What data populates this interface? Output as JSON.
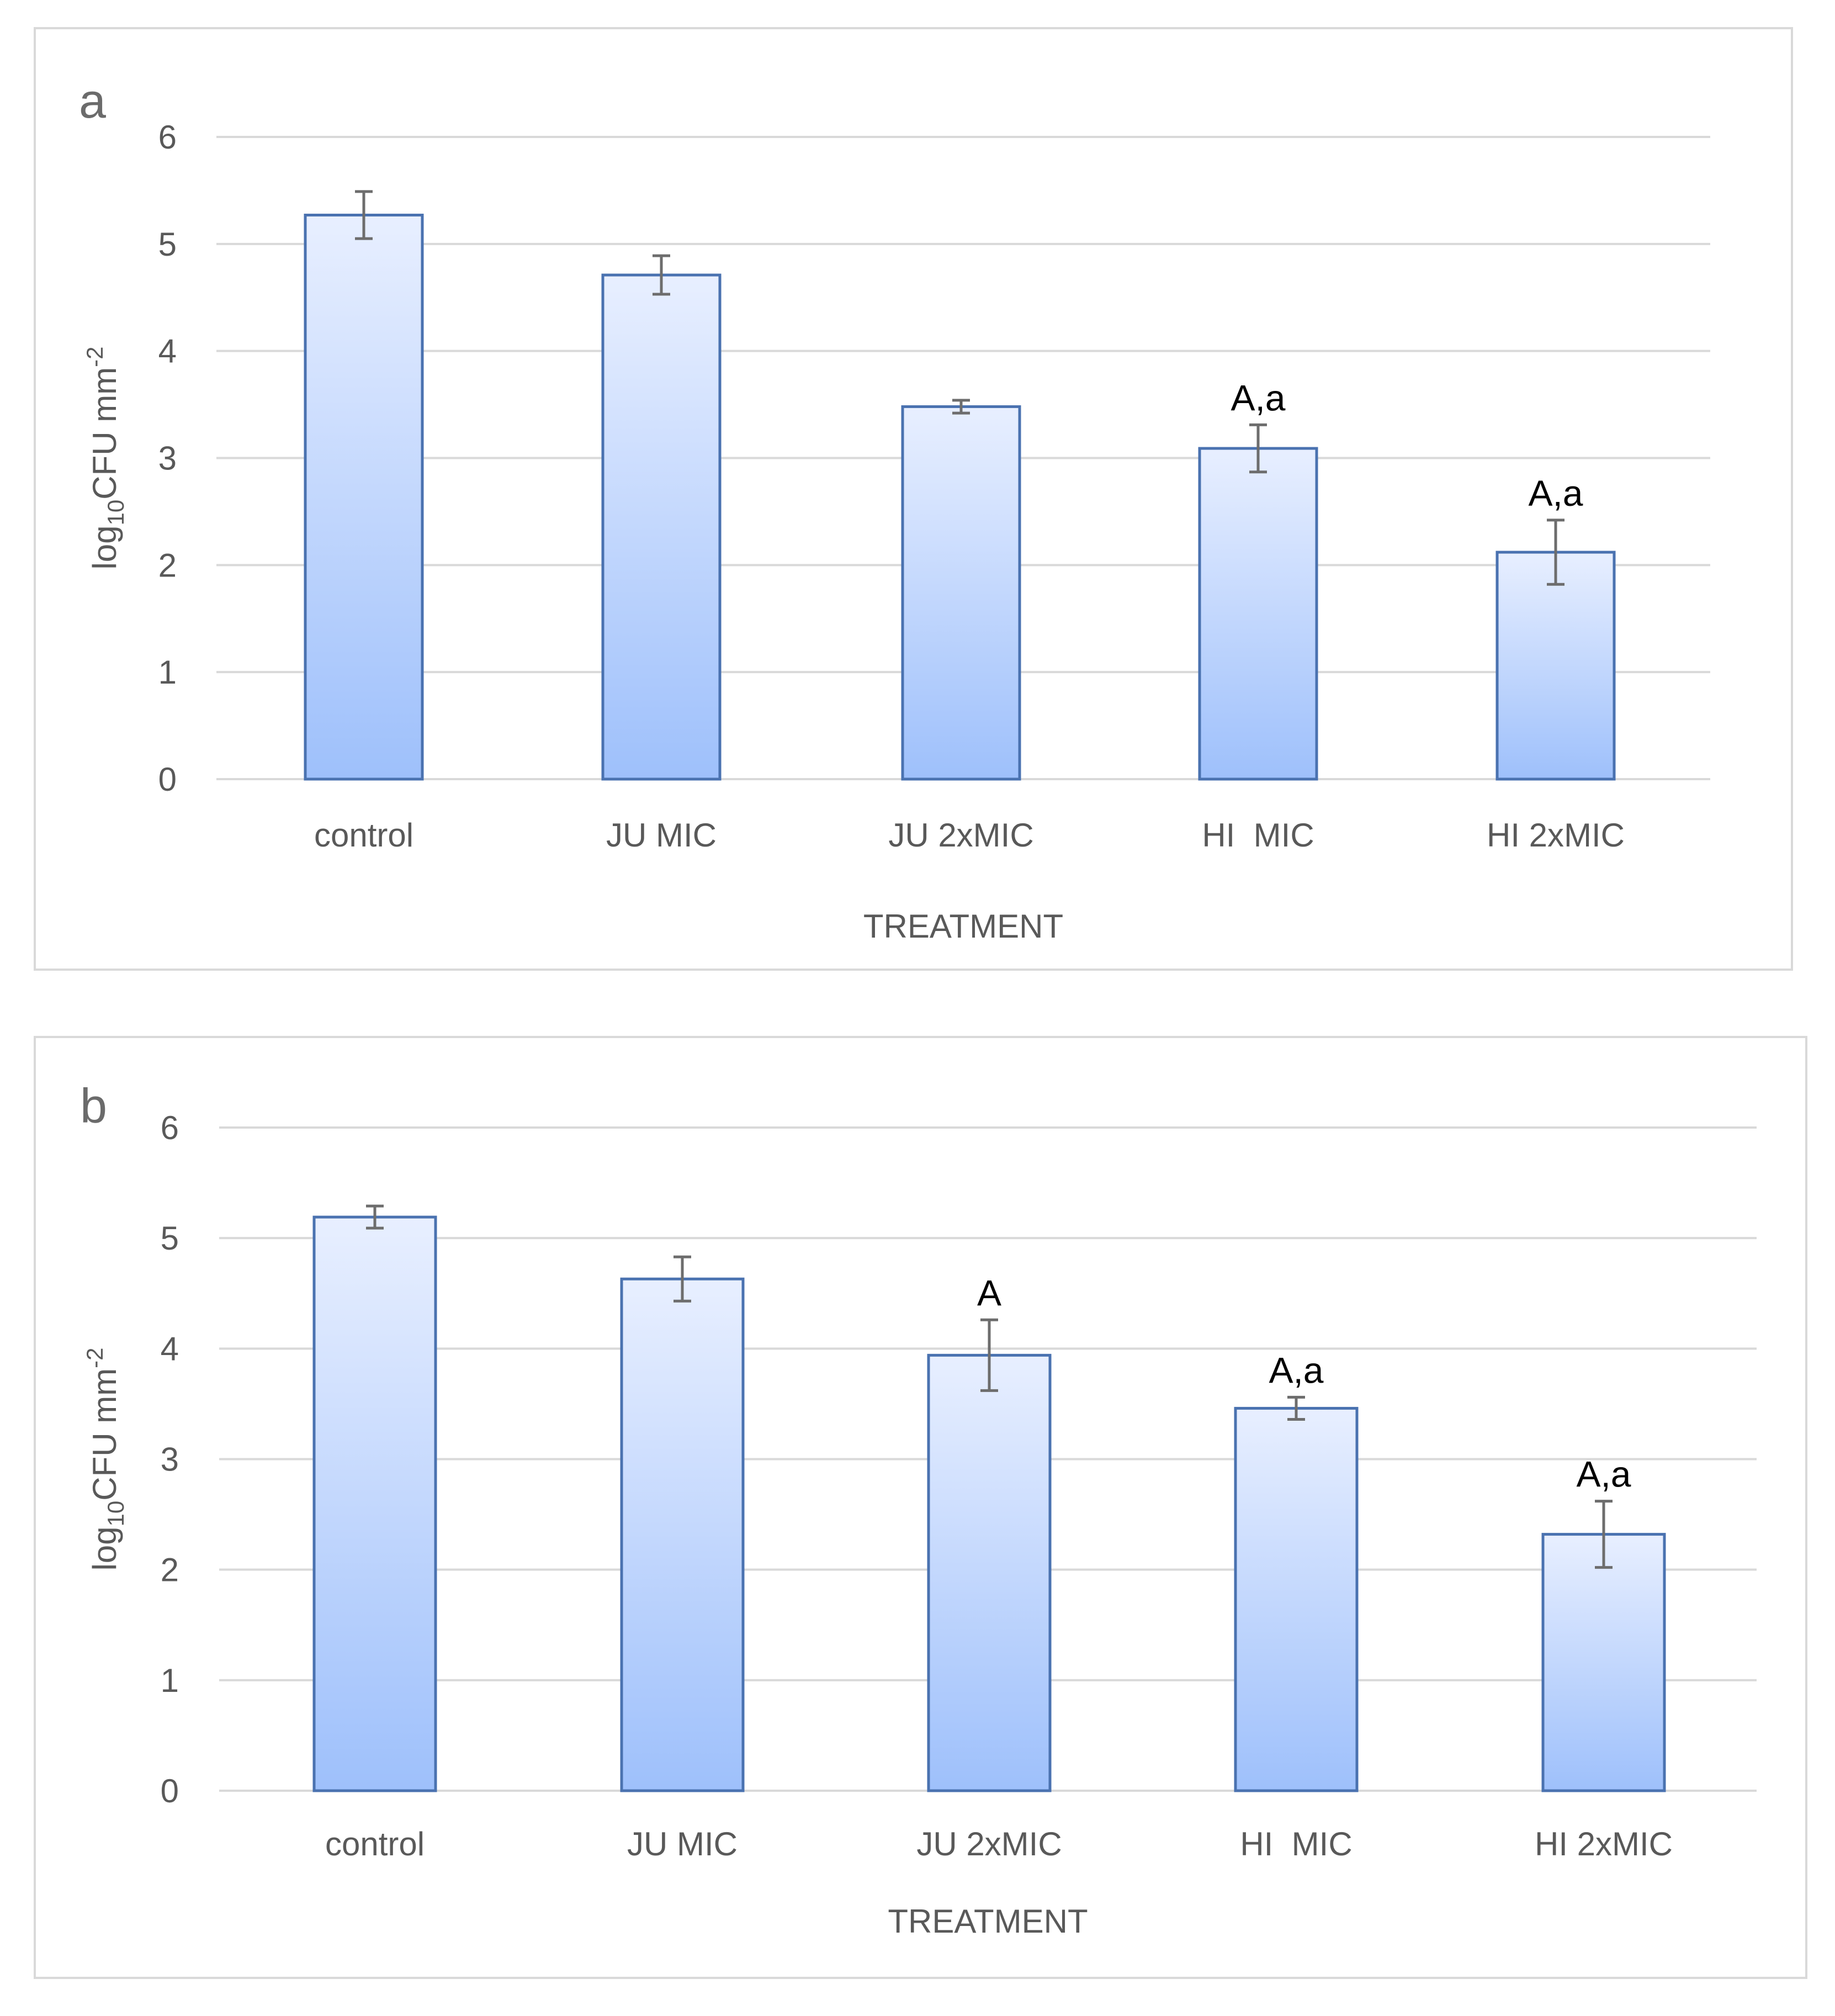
{
  "colors": {
    "bar_top": "#e8efff",
    "bar_bottom": "#9ec0fb",
    "bar_border": "#4a72b0",
    "error_bar": "#6d6d6d",
    "grid": "#d9d9d9"
  },
  "chart_data": [
    {
      "panel_label": "a",
      "type": "bar",
      "categories": [
        "control",
        "JU MIC",
        "JU 2xMIC",
        "HI  MIC",
        "HI 2xMIC"
      ],
      "values": [
        5.27,
        4.71,
        3.48,
        3.09,
        2.12
      ],
      "errors": [
        0.22,
        0.18,
        0.06,
        0.22,
        0.3
      ],
      "annotations": [
        "",
        "",
        "",
        "A,a",
        "A,a"
      ],
      "ylim": [
        0,
        6
      ],
      "yticks": [
        "0",
        "1",
        "2",
        "3",
        "4",
        "5",
        "6"
      ],
      "xlabel": "TREATMENT",
      "ylabel": {
        "base": "log",
        "sub": "10",
        "main": "CFU mm",
        "sup": "-2"
      },
      "grid": true
    },
    {
      "panel_label": "b",
      "type": "bar",
      "categories": [
        "control",
        "JU MIC",
        "JU 2xMIC",
        "HI  MIC",
        "HI 2xMIC"
      ],
      "values": [
        5.19,
        4.63,
        3.94,
        3.46,
        2.32
      ],
      "errors": [
        0.1,
        0.2,
        0.32,
        0.1,
        0.3
      ],
      "annotations": [
        "",
        "",
        "A",
        "A,a",
        "A,a"
      ],
      "ylim": [
        0,
        6
      ],
      "yticks": [
        "0",
        "1",
        "2",
        "3",
        "4",
        "5",
        "6"
      ],
      "xlabel": "TREATMENT",
      "ylabel": {
        "base": "log",
        "sub": "10",
        "main": "CFU mm",
        "sup": "-2"
      },
      "grid": true
    }
  ]
}
